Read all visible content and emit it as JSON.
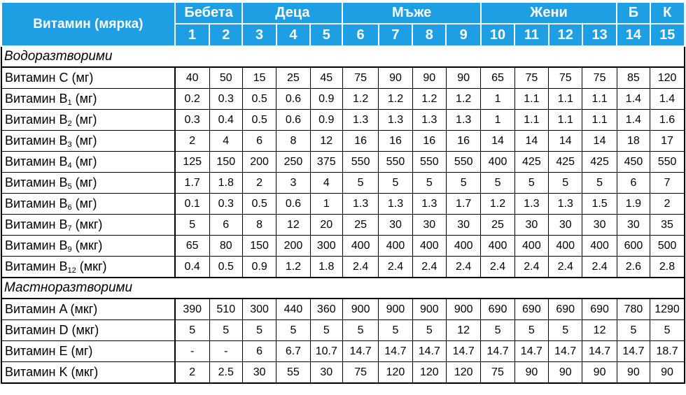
{
  "table": {
    "corner_label": "Витамин (мярка)",
    "groups": [
      {
        "label": "Бебета",
        "span": 2
      },
      {
        "label": "Деца",
        "span": 3
      },
      {
        "label": "Мъже",
        "span": 4
      },
      {
        "label": "Жени",
        "span": 4
      },
      {
        "label": "Б",
        "span": 1
      },
      {
        "label": "К",
        "span": 1
      }
    ],
    "column_numbers": [
      "1",
      "2",
      "3",
      "4",
      "5",
      "6",
      "7",
      "8",
      "9",
      "10",
      "11",
      "12",
      "13",
      "14",
      "15"
    ],
    "sections": [
      {
        "title": "Водоразтворими",
        "rows": [
          {
            "name": "Витамин C",
            "sub": "",
            "unit": " (мг)",
            "values": [
              "40",
              "50",
              "15",
              "25",
              "45",
              "75",
              "90",
              "90",
              "90",
              "65",
              "75",
              "75",
              "75",
              "85",
              "120"
            ]
          },
          {
            "name": "Витамин B",
            "sub": "1",
            "unit": " (мг)",
            "values": [
              "0.2",
              "0.3",
              "0.5",
              "0.6",
              "0.9",
              "1.2",
              "1.2",
              "1.2",
              "1.2",
              "1",
              "1.1",
              "1.1",
              "1.1",
              "1.4",
              "1.4"
            ]
          },
          {
            "name": "Витамин B",
            "sub": "2",
            "unit": " (мг)",
            "values": [
              "0.3",
              "0.4",
              "0.5",
              "0.6",
              "0.9",
              "1.3",
              "1.3",
              "1.3",
              "1.3",
              "1",
              "1.1",
              "1.1",
              "1.1",
              "1.4",
              "1.6"
            ]
          },
          {
            "name": "Витамин B",
            "sub": "3",
            "unit": " (мг)",
            "values": [
              "2",
              "4",
              "6",
              "8",
              "12",
              "16",
              "16",
              "16",
              "16",
              "14",
              "14",
              "14",
              "14",
              "18",
              "17"
            ]
          },
          {
            "name": "Витамин B",
            "sub": "4",
            "unit": " (мг)",
            "values": [
              "125",
              "150",
              "200",
              "250",
              "375",
              "550",
              "550",
              "550",
              "550",
              "400",
              "425",
              "425",
              "425",
              "450",
              "550"
            ]
          },
          {
            "name": "Витамин B",
            "sub": "5",
            "unit": " (мг)",
            "values": [
              "1.7",
              "1.8",
              "2",
              "3",
              "4",
              "5",
              "5",
              "5",
              "5",
              "5",
              "5",
              "5",
              "5",
              "6",
              "7"
            ]
          },
          {
            "name": "Витамин B",
            "sub": "6",
            "unit": " (мг)",
            "values": [
              "0.1",
              "0.3",
              "0.5",
              "0.6",
              "1",
              "1.3",
              "1.3",
              "1.3",
              "1.7",
              "1.2",
              "1.3",
              "1.3",
              "1.5",
              "1.9",
              "2"
            ]
          },
          {
            "name": "Витамин B",
            "sub": "7",
            "unit": " (мкг)",
            "values": [
              "5",
              "6",
              "8",
              "12",
              "20",
              "25",
              "30",
              "30",
              "30",
              "25",
              "30",
              "30",
              "30",
              "30",
              "35"
            ]
          },
          {
            "name": "Витамин B",
            "sub": "9",
            "unit": " (мкг)",
            "values": [
              "65",
              "80",
              "150",
              "200",
              "300",
              "400",
              "400",
              "400",
              "400",
              "400",
              "400",
              "400",
              "400",
              "600",
              "500"
            ]
          },
          {
            "name": "Витамин B",
            "sub": "12",
            "unit": " (мкг)",
            "values": [
              "0.4",
              "0.5",
              "0.9",
              "1.2",
              "1.8",
              "2.4",
              "2.4",
              "2.4",
              "2.4",
              "2.4",
              "2.4",
              "2.4",
              "2.4",
              "2.6",
              "2.8"
            ]
          }
        ]
      },
      {
        "title": "Мастноразтворими",
        "rows": [
          {
            "name": "Витамин A",
            "sub": "",
            "unit": " (мкг)",
            "values": [
              "390",
              "510",
              "300",
              "440",
              "360",
              "900",
              "900",
              "900",
              "900",
              "690",
              "690",
              "690",
              "690",
              "780",
              "1290"
            ]
          },
          {
            "name": "Витамин D",
            "sub": "",
            "unit": " (мкг)",
            "values": [
              "5",
              "5",
              "5",
              "5",
              "5",
              "5",
              "5",
              "5",
              "12",
              "5",
              "5",
              "5",
              "12",
              "5",
              "5"
            ]
          },
          {
            "name": "Витамин E",
            "sub": "",
            "unit": " (мг)",
            "values": [
              "-",
              "-",
              "6",
              "6.7",
              "10.7",
              "14.7",
              "14.7",
              "14.7",
              "14.7",
              "14.7",
              "14.7",
              "14.7",
              "14.7",
              "14.7",
              "18.7"
            ]
          },
          {
            "name": "Витамин K",
            "sub": "",
            "unit": " (мкг)",
            "values": [
              "2",
              "2.5",
              "30",
              "55",
              "30",
              "75",
              "120",
              "120",
              "120",
              "75",
              "90",
              "90",
              "90",
              "90",
              "90"
            ]
          }
        ]
      }
    ]
  }
}
